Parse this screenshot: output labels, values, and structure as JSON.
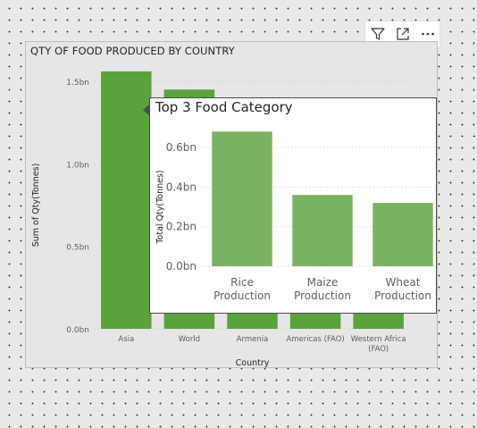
{
  "toolbar": {
    "items": [
      {
        "icon": "filter-icon"
      },
      {
        "icon": "focus-mode-icon"
      },
      {
        "icon": "more-options-icon"
      }
    ]
  },
  "colors": {
    "main_bar": "#5aa33c",
    "tooltip_bar": "#7ab360",
    "grid": "#c8c8c8"
  },
  "chart_data": [
    {
      "type": "bar",
      "title": "QTY OF FOOD PRODUCED BY COUNTRY",
      "xlabel": "Country",
      "ylabel": "Sum of Qty(Tonnes)",
      "categories": [
        "Asia",
        "World",
        "Armenia",
        "Americas (FAO)",
        "Western Africa (FAO)"
      ],
      "values": [
        1.56,
        1.45,
        1.28,
        0.95,
        0.82
      ],
      "ylim": [
        0,
        1.5
      ],
      "yticks": [
        0,
        0.5,
        1.0,
        1.5
      ],
      "ytick_labels": [
        "0.0bn",
        "0.5bn",
        "1.0bn",
        "1.5bn"
      ],
      "grid": true
    },
    {
      "type": "bar",
      "title": "Top 3 Food Category",
      "xlabel": "",
      "ylabel": "Total Qty(Tonnes)",
      "categories": [
        "Rice Production",
        "Maize Production",
        "Wheat Production"
      ],
      "values": [
        0.68,
        0.36,
        0.32
      ],
      "ylim": [
        0,
        0.6
      ],
      "yticks": [
        0,
        0.2,
        0.4,
        0.6
      ],
      "ytick_labels": [
        "0.0bn",
        "0.2bn",
        "0.4bn",
        "0.6bn"
      ],
      "grid": true
    }
  ]
}
